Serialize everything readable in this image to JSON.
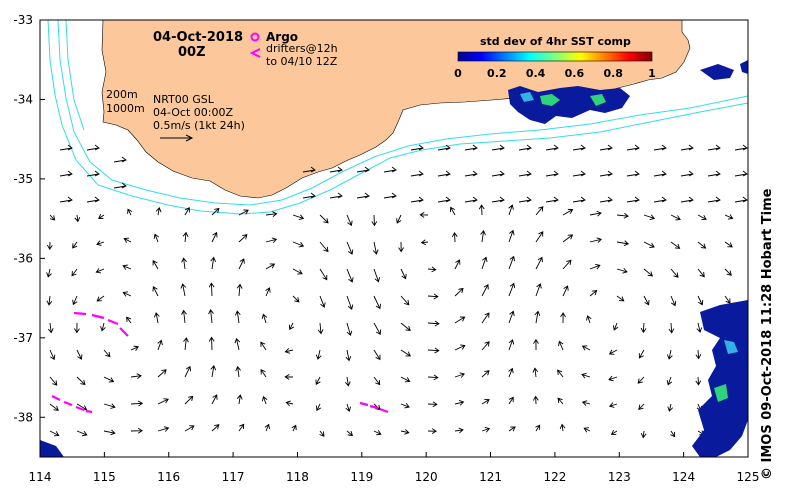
{
  "map": {
    "date_title": "04-Oct-2018",
    "time_title": "00Z",
    "legend_argo": "Argo",
    "legend_drifters_line1": "drifters@12h",
    "legend_drifters_line2": "to 04/10 12Z",
    "isobath_200": "200m",
    "isobath_1000": "1000m",
    "product": "NRT00 GSL",
    "product_time": "04-Oct 00:00Z",
    "scale_label": "0.5m/s (1kt 24h)",
    "colorbar_title": "std dev of 4hr SST comp",
    "colorbar_ticks": [
      "0",
      "0.2",
      "0.4",
      "0.6",
      "0.8",
      "1"
    ],
    "x_ticks": [
      "114",
      "115",
      "116",
      "117",
      "118",
      "119",
      "120",
      "121",
      "122",
      "123",
      "124",
      "125"
    ],
    "y_ticks": [
      "-33",
      "-34",
      "-35",
      "-36",
      "-37",
      "-38"
    ],
    "credit": "© IMOS 09-Oct-2018 11:28 Hobart Time"
  },
  "colors": {
    "land": "#fcc89b",
    "isobath": "#35dcea",
    "drifter": "#ff00ff",
    "sst_low": "#0a1a9c",
    "sst_mid": "#2fd37a"
  },
  "chart_data": {
    "type": "map",
    "x_range": [
      114,
      125
    ],
    "y_range": [
      -38.5,
      -33
    ],
    "x_unit": "degrees longitude",
    "y_unit": "degrees latitude",
    "colorbar_range": [
      0,
      1
    ],
    "colorbar": "jet",
    "vector_scale_m_per_s": 0.5,
    "vector_field": "surface current arrows",
    "drifter_tracks": [
      {
        "lon": [
          114.5,
          114.8,
          115.1,
          115.3
        ],
        "lat": [
          -36.7,
          -36.75,
          -36.85,
          -36.95
        ]
      },
      {
        "lon": [
          114.2,
          114.5,
          114.8
        ],
        "lat": [
          -37.65,
          -37.75,
          -37.9
        ]
      },
      {
        "lon": [
          119.0,
          119.3,
          119.4
        ],
        "lat": [
          -37.8,
          -37.85,
          -37.9
        ]
      }
    ]
  }
}
